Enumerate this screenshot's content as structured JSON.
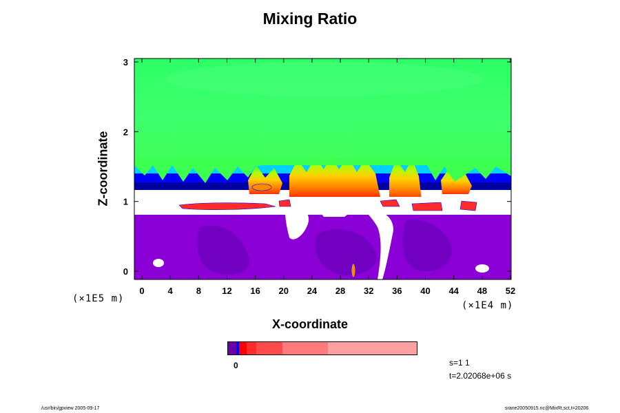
{
  "chart_data": {
    "type": "heatmap",
    "title": "Mixing Ratio",
    "xlabel": "X-coordinate",
    "ylabel": "Z-coordinate",
    "x_scale_note": "(×1E4 m)",
    "y_scale_note": "(×1E5 m)",
    "xlim": [
      0,
      52
    ],
    "ylim": [
      0,
      3
    ],
    "x_ticks": [
      "0",
      "4",
      "8",
      "12",
      "16",
      "20",
      "24",
      "28",
      "32",
      "36",
      "40",
      "44",
      "48",
      "52"
    ],
    "y_ticks": [
      "0",
      "1",
      "2",
      "3"
    ],
    "colorbar": {
      "tick_label": "0",
      "colors": [
        "#6a00a8",
        "#0000ff",
        "#ff0000",
        "#ff2a2a",
        "#ff4a4a",
        "#ff7a7a",
        "#ffa0a0"
      ],
      "fractions": [
        0.045,
        0.015,
        0.04,
        0.05,
        0.14,
        0.24,
        0.47
      ]
    },
    "colors": {
      "upper_green": "#33ff66",
      "upper_green_light": "#44ff70",
      "purple": "#8a00d6",
      "purple_dark": "#6a00b8",
      "white": "#ffffff",
      "blue": "#0000ff",
      "cyan": "#00c8ff",
      "yellow": "#ffd000",
      "orange": "#ff7a00",
      "red": "#ff2a2a"
    }
  },
  "info": {
    "s": "s=1 1",
    "t": "t=2.02068e+06 s"
  },
  "footer": {
    "left": "/usr/bin/gpview 2005-09-17",
    "right": "srane20050915.nc@MixRt,sct,t=20206"
  }
}
